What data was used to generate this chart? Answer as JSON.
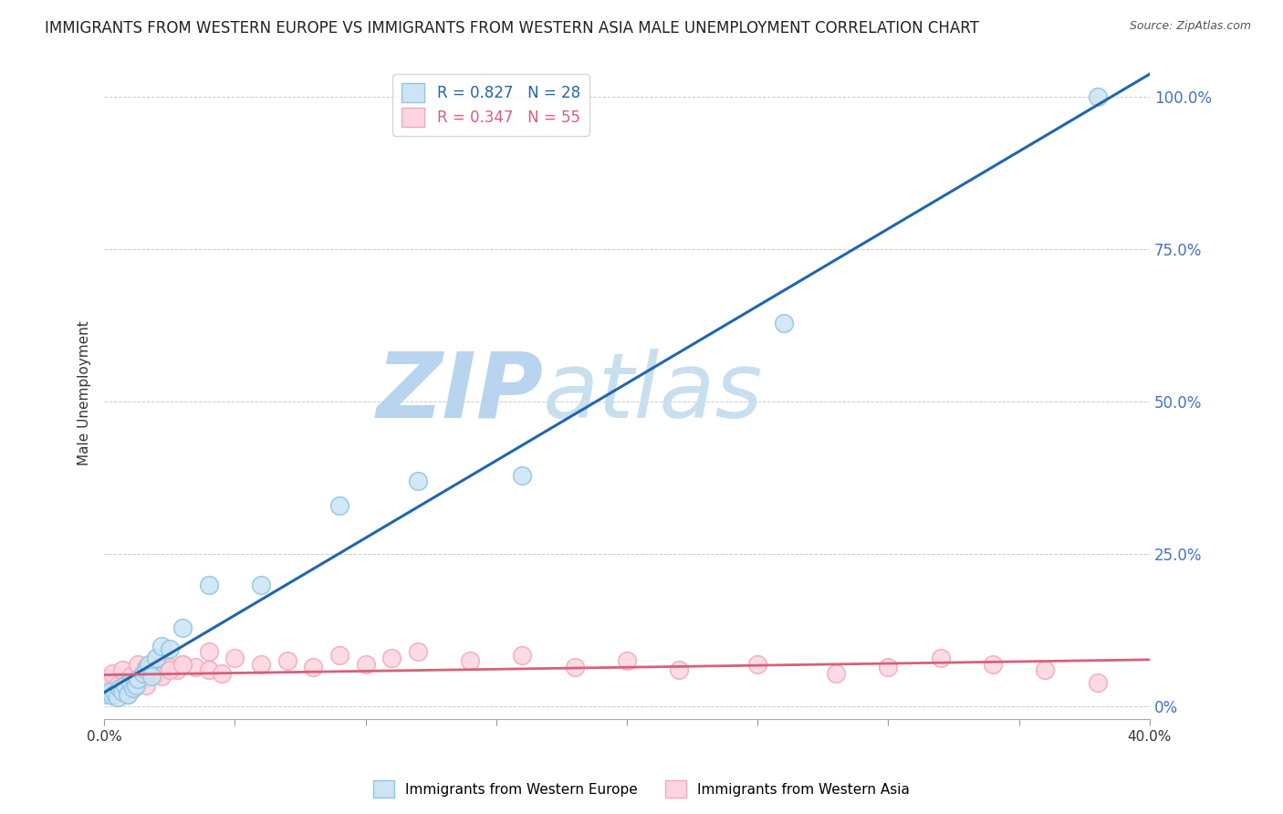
{
  "title": "IMMIGRANTS FROM WESTERN EUROPE VS IMMIGRANTS FROM WESTERN ASIA MALE UNEMPLOYMENT CORRELATION CHART",
  "source": "Source: ZipAtlas.com",
  "ylabel": "Male Unemployment",
  "legend_label_blue": "Immigrants from Western Europe",
  "legend_label_pink": "Immigrants from Western Asia",
  "R_blue": 0.827,
  "N_blue": 28,
  "R_pink": 0.347,
  "N_pink": 55,
  "color_blue": "#92c5de",
  "color_pink": "#f4a9bb",
  "trendline_blue": "#2166ac",
  "trendline_pink": "#d6607a",
  "watermark_zip": "ZIP",
  "watermark_atlas": "atlas",
  "watermark_color": "#c8dff0",
  "watermark_atlas_color": "#a8c8e0",
  "blue_scatter_x": [
    0.001,
    0.002,
    0.003,
    0.004,
    0.005,
    0.006,
    0.007,
    0.008,
    0.009,
    0.01,
    0.011,
    0.012,
    0.013,
    0.015,
    0.016,
    0.017,
    0.018,
    0.02,
    0.022,
    0.025,
    0.03,
    0.04,
    0.06,
    0.09,
    0.12,
    0.16,
    0.26,
    0.38
  ],
  "blue_scatter_y": [
    0.02,
    0.025,
    0.018,
    0.022,
    0.015,
    0.03,
    0.025,
    0.035,
    0.02,
    0.04,
    0.03,
    0.035,
    0.045,
    0.055,
    0.06,
    0.07,
    0.05,
    0.08,
    0.1,
    0.095,
    0.13,
    0.2,
    0.2,
    0.33,
    0.37,
    0.38,
    0.63,
    1.0
  ],
  "pink_scatter_x": [
    0.001,
    0.002,
    0.003,
    0.004,
    0.005,
    0.006,
    0.007,
    0.008,
    0.009,
    0.01,
    0.011,
    0.012,
    0.013,
    0.015,
    0.016,
    0.018,
    0.02,
    0.022,
    0.025,
    0.028,
    0.03,
    0.035,
    0.04,
    0.045,
    0.05,
    0.06,
    0.07,
    0.08,
    0.09,
    0.1,
    0.11,
    0.12,
    0.14,
    0.16,
    0.18,
    0.2,
    0.22,
    0.25,
    0.28,
    0.3,
    0.32,
    0.34,
    0.36,
    0.38,
    0.001,
    0.003,
    0.005,
    0.007,
    0.01,
    0.013,
    0.016,
    0.02,
    0.025,
    0.03,
    0.04
  ],
  "pink_scatter_y": [
    0.025,
    0.03,
    0.02,
    0.035,
    0.025,
    0.04,
    0.03,
    0.035,
    0.02,
    0.045,
    0.03,
    0.04,
    0.05,
    0.045,
    0.035,
    0.06,
    0.055,
    0.05,
    0.065,
    0.06,
    0.07,
    0.065,
    0.06,
    0.055,
    0.08,
    0.07,
    0.075,
    0.065,
    0.085,
    0.07,
    0.08,
    0.09,
    0.075,
    0.085,
    0.065,
    0.075,
    0.06,
    0.07,
    0.055,
    0.065,
    0.08,
    0.07,
    0.06,
    0.04,
    0.045,
    0.055,
    0.035,
    0.06,
    0.05,
    0.07,
    0.065,
    0.08,
    0.06,
    0.07,
    0.09
  ],
  "xlim": [
    0.0,
    0.4
  ],
  "ylim": [
    -0.02,
    1.05
  ],
  "y_ticks": [
    0.0,
    0.25,
    0.5,
    0.75,
    1.0
  ],
  "y_tick_labels": [
    "0%",
    "25.0%",
    "50.0%",
    "75.0%",
    "100.0%"
  ],
  "background_color": "#ffffff",
  "grid_color": "#cccccc",
  "title_fontsize": 12,
  "axis_label_fontsize": 11,
  "tick_fontsize": 11
}
